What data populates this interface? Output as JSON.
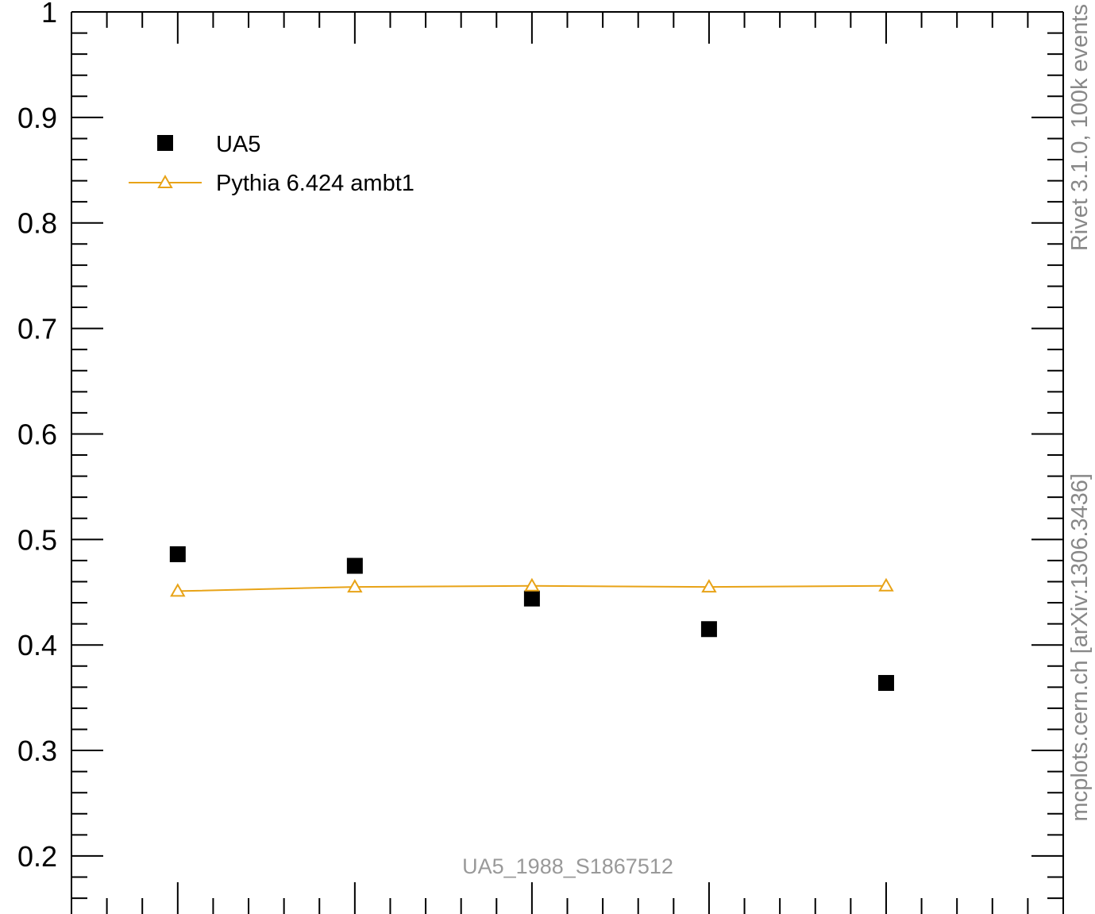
{
  "chart_data": {
    "type": "scatter",
    "y_ticks": [
      {
        "value": 0.2,
        "label": "0.2"
      },
      {
        "value": 0.3,
        "label": "0.3"
      },
      {
        "value": 0.4,
        "label": "0.4"
      },
      {
        "value": 0.5,
        "label": "0.5"
      },
      {
        "value": 0.6,
        "label": "0.6"
      },
      {
        "value": 0.7,
        "label": "0.7"
      },
      {
        "value": 0.8,
        "label": "0.8"
      },
      {
        "value": 0.9,
        "label": "0.9"
      },
      {
        "value": 1.0,
        "label": "1"
      }
    ],
    "ylim": [
      0.145,
      1.0
    ],
    "xlim": [
      0,
      5.6
    ],
    "x": [
      0.6,
      1.6,
      2.6,
      3.6,
      4.6
    ],
    "grid": false,
    "legend_position": "top-left",
    "series": [
      {
        "name": "UA5",
        "marker": "square",
        "color": "#000000",
        "values": [
          0.486,
          0.475,
          0.444,
          0.415,
          0.364
        ]
      },
      {
        "name": "Pythia 6.424 ambt1",
        "marker": "open-triangle",
        "color": "#e8a317",
        "values": [
          0.451,
          0.455,
          0.456,
          0.455,
          0.456
        ]
      }
    ],
    "watermark": "UA5_1988_S1867512"
  },
  "side_labels": {
    "upper": "Rivet 3.1.0,  100k events",
    "lower": "mcplots.cern.ch [arXiv:1306.3436]"
  }
}
